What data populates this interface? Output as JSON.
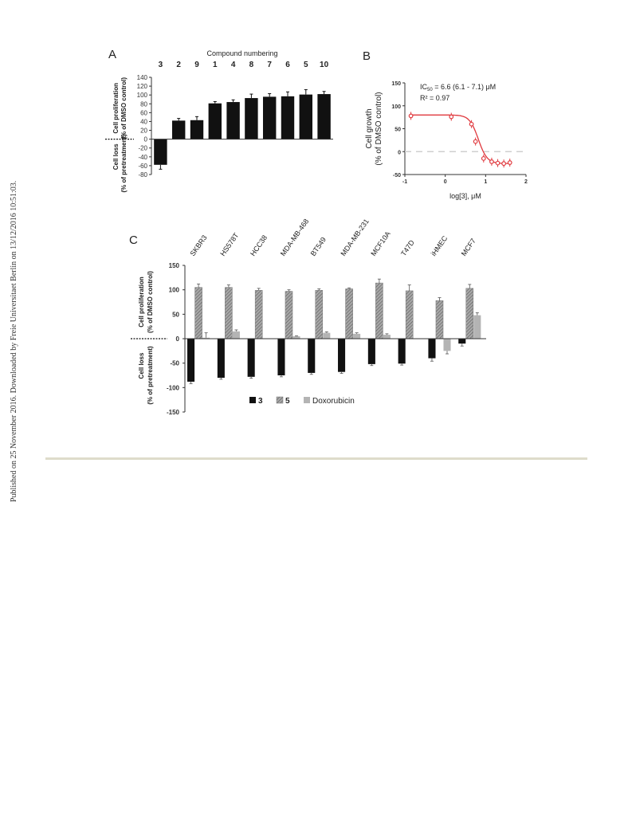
{
  "watermark": "Published on 25 November 2016. Downloaded by Freie Universitaet Berlin on 13/12/2016 10:51:03.",
  "chart_data": [
    {
      "panel": "A",
      "type": "bar",
      "title": "Compound numbering",
      "categories": [
        "3",
        "2",
        "9",
        "1",
        "4",
        "8",
        "7",
        "6",
        "5",
        "10"
      ],
      "values": [
        -58,
        42,
        43,
        81,
        84,
        93,
        96,
        97,
        101,
        102
      ],
      "errors": [
        10,
        5,
        8,
        4,
        5,
        9,
        7,
        10,
        11,
        6
      ],
      "ylim": [
        -80,
        140
      ],
      "yticks": [
        -80,
        -60,
        -40,
        -20,
        0,
        20,
        40,
        60,
        80,
        100,
        120,
        140
      ],
      "ylabel_upper": [
        "Cell proliferation",
        "(% of DMSO control)"
      ],
      "ylabel_lower": [
        "Cell loss",
        "(% of pretreatment)"
      ]
    },
    {
      "panel": "B",
      "type": "scatter",
      "x": [
        -0.85,
        0.15,
        0.65,
        0.75,
        0.95,
        1.15,
        1.3,
        1.45,
        1.6
      ],
      "y": [
        78,
        76,
        60,
        22,
        -15,
        -22,
        -25,
        -26,
        -24
      ],
      "xlim": [
        -1,
        2
      ],
      "ylim": [
        -50,
        150
      ],
      "xticks": [
        -1,
        0,
        1,
        2
      ],
      "yticks": [
        -50,
        0,
        50,
        100,
        150
      ],
      "xlabel": "log[3], μM",
      "ylabel": [
        "Cell growth",
        "(% of DMSO control)"
      ],
      "annotation": {
        "ic50_label": "IC",
        "ic50_sub": "50",
        "ic50_value": " =  6.6 (6.1 - 7.1) μM",
        "r2": "R² = 0.97"
      },
      "fit": {
        "top": 80,
        "bottom": -26,
        "log_ic50": 0.82,
        "hill": 4
      }
    },
    {
      "panel": "C",
      "type": "bar",
      "categories": [
        "SKBR3",
        "HS578T",
        "HCC38",
        "MDA-MB-468",
        "BT549",
        "MDA-MB-231",
        "MCF10A",
        "T47D",
        "iHMEC",
        "MCF7"
      ],
      "series": [
        {
          "name": "3",
          "color": "#111111",
          "values": [
            -88,
            -80,
            -78,
            -75,
            -70,
            -68,
            -52,
            -51,
            -40,
            -10
          ],
          "errors": [
            4,
            3,
            3,
            3,
            3,
            3,
            3,
            3,
            6,
            5
          ]
        },
        {
          "name": "5",
          "color": "#8c8c8c",
          "values": [
            105,
            105,
            99,
            97,
            99,
            102,
            114,
            98,
            78,
            103
          ],
          "errors": [
            7,
            5,
            4,
            3,
            3,
            2,
            8,
            12,
            6,
            8
          ]
        },
        {
          "name": "Doxorubicin",
          "color": "#b4b4b4",
          "values": [
            2,
            15,
            0,
            5,
            12,
            10,
            8,
            0,
            -25,
            48
          ],
          "errors": [
            10,
            3,
            0,
            1,
            2,
            2,
            2,
            0,
            6,
            5
          ]
        }
      ],
      "ylim": [
        -150,
        150
      ],
      "yticks": [
        -150,
        -100,
        -50,
        0,
        50,
        100,
        150
      ],
      "ylabel_upper": [
        "Cell proliferation",
        "(% of DMSO control)"
      ],
      "ylabel_lower": [
        "Cell loss",
        "(% of pretreatment)"
      ]
    }
  ]
}
